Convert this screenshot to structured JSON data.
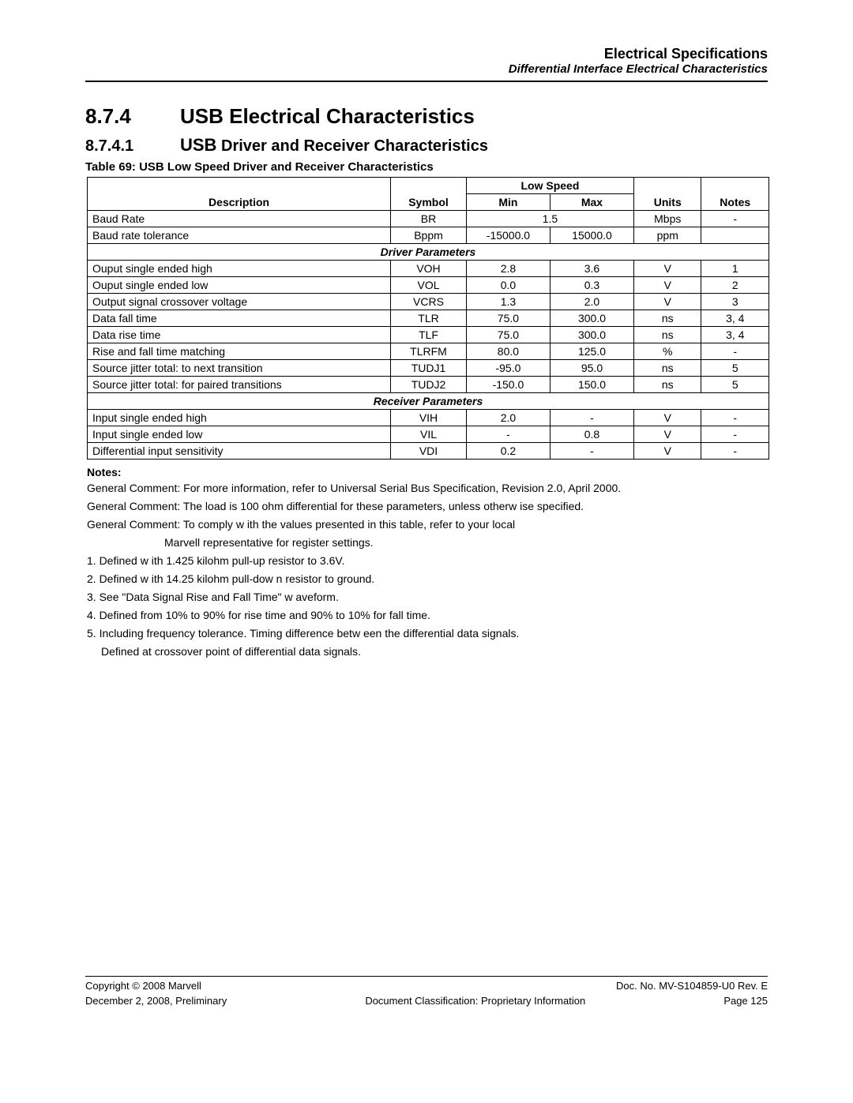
{
  "header": {
    "title": "Electrical Specifications",
    "subtitle": "Differential Interface Electrical Characteristics"
  },
  "section": {
    "num": "8.7.4",
    "title": "USB Electrical Characteristics"
  },
  "subsection": {
    "num": "8.7.4.1",
    "title_prefix": "USB",
    "title_rest": " Driver and Receiver Characteristics"
  },
  "table": {
    "caption": "Table 69:   USB Low Speed Driver and Receiver Characteristics",
    "super_header": "Low Speed",
    "headers": {
      "description": "Description",
      "symbol": "Symbol",
      "min": "Min",
      "max": "Max",
      "units": "Units",
      "notes": "Notes"
    },
    "section_driver": "Driver Parameters",
    "section_receiver": "Receiver Parameters",
    "rows_top": [
      {
        "desc": "Baud Rate",
        "sym": "BR",
        "merged": "1.5",
        "units": "Mbps",
        "notes": "-"
      },
      {
        "desc": "Baud rate tolerance",
        "sym": "Bppm",
        "min": "-15000.0",
        "max": "15000.0",
        "units": "ppm",
        "notes": ""
      }
    ],
    "rows_driver": [
      {
        "desc": "Ouput single ended high",
        "sym": "VOH",
        "min": "2.8",
        "max": "3.6",
        "units": "V",
        "notes": "1"
      },
      {
        "desc": "Ouput single ended low",
        "sym": "VOL",
        "min": "0.0",
        "max": "0.3",
        "units": "V",
        "notes": "2"
      },
      {
        "desc": "Output signal crossover voltage",
        "sym": "VCRS",
        "min": "1.3",
        "max": "2.0",
        "units": "V",
        "notes": "3"
      },
      {
        "desc": "Data fall time",
        "sym": "TLR",
        "min": "75.0",
        "max": "300.0",
        "units": "ns",
        "notes": "3, 4"
      },
      {
        "desc": "Data rise time",
        "sym": "TLF",
        "min": "75.0",
        "max": "300.0",
        "units": "ns",
        "notes": "3, 4"
      },
      {
        "desc": "Rise and fall time matching",
        "sym": "TLRFM",
        "min": "80.0",
        "max": "125.0",
        "units": "%",
        "notes": "-"
      },
      {
        "desc": "Source jitter total: to next transition",
        "sym": "TUDJ1",
        "min": "-95.0",
        "max": "95.0",
        "units": "ns",
        "notes": "5"
      },
      {
        "desc": "Source jitter total: for paired transitions",
        "sym": "TUDJ2",
        "min": "-150.0",
        "max": "150.0",
        "units": "ns",
        "notes": "5"
      }
    ],
    "rows_receiver": [
      {
        "desc": "Input single ended high",
        "sym": "VIH",
        "min": "2.0",
        "max": "-",
        "units": "V",
        "notes": "-"
      },
      {
        "desc": "Input single ended low",
        "sym": "VIL",
        "min": "-",
        "max": "0.8",
        "units": "V",
        "notes": "-"
      },
      {
        "desc": "Differential input sensitivity",
        "sym": "VDI",
        "min": "0.2",
        "max": "-",
        "units": "V",
        "notes": "-"
      }
    ]
  },
  "notes": {
    "heading": "Notes:",
    "lines": [
      "General Comment: For more information, refer to Universal Serial Bus Specification, Revision 2.0, April 2000.",
      "General Comment: The load is 100 ohm differential for these parameters, unless otherw ise specified.",
      "General Comment: To comply w ith the values presented in this table, refer to your local"
    ],
    "indent_line": "Marvell representative for register settings.",
    "numbered": [
      "1. Defined w ith 1.425 kilohm pull-up resistor to 3.6V.",
      "2. Defined w ith 14.25 kilohm pull-dow n resistor to ground.",
      "3. See \"Data Signal Rise and Fall Time\" w aveform.",
      "4. Defined from 10% to 90% for rise time and 90% to 10% for fall time.",
      "5. Including frequency tolerance. Timing difference betw een the differential data signals."
    ],
    "trailing": "Defined at crossover point of differential data signals."
  },
  "footer": {
    "left1": "Copyright © 2008 Marvell",
    "right1": "Doc. No. MV-S104859-U0 Rev. E",
    "left2": "December 2, 2008, Preliminary",
    "center2": "Document Classification: Proprietary Information",
    "right2": "Page 125"
  }
}
